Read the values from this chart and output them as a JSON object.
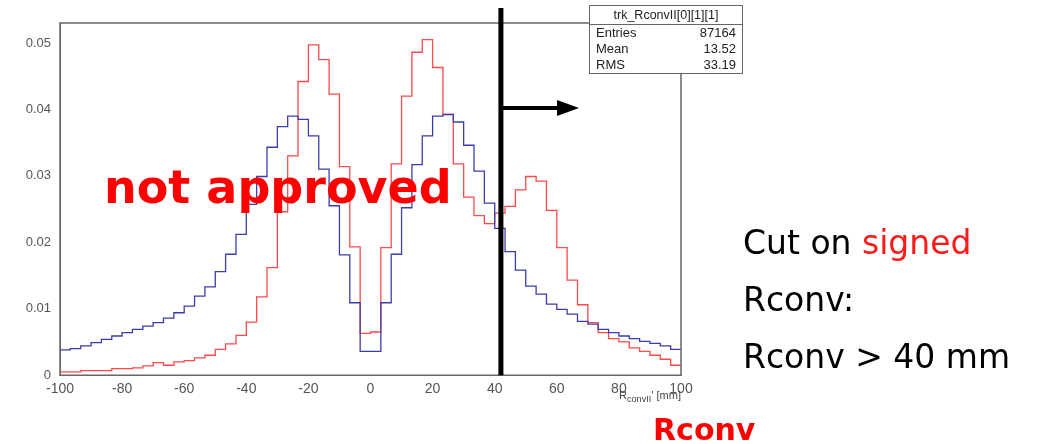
{
  "chart_data": {
    "type": "histogram",
    "xlabel": "R$_{convII}$' [mm]",
    "bins": [
      -100,
      -96.67,
      -93.33,
      -90,
      -86.67,
      -83.33,
      -80,
      -76.67,
      -73.33,
      -70,
      -66.67,
      -63.33,
      -60,
      -56.67,
      -53.33,
      -50,
      -46.67,
      -43.33,
      -40,
      -36.67,
      -33.33,
      -30,
      -26.67,
      -23.33,
      -20,
      -16.67,
      -13.33,
      -10,
      -6.67,
      -3.33,
      0,
      3.33,
      6.67,
      10,
      13.33,
      16.67,
      20,
      23.33,
      26.67,
      30,
      33.33,
      36.67,
      40,
      43.33,
      46.67,
      50,
      53.33,
      56.67,
      60,
      63.33,
      66.67,
      70,
      73.33,
      76.67,
      80,
      83.33,
      86.67,
      90,
      93.33,
      96.67,
      100
    ],
    "series": [
      {
        "color": "#3c3caa",
        "values": [
          0.0038,
          0.004,
          0.0044,
          0.0049,
          0.0054,
          0.0059,
          0.0064,
          0.0069,
          0.0074,
          0.0079,
          0.0086,
          0.0094,
          0.0104,
          0.0119,
          0.0133,
          0.0156,
          0.0182,
          0.0212,
          0.0257,
          0.0299,
          0.0343,
          0.0374,
          0.039,
          0.0385,
          0.036,
          0.031,
          0.0255,
          0.0181,
          0.0109,
          0.0036,
          0.0036,
          0.0109,
          0.0182,
          0.0252,
          0.0317,
          0.036,
          0.039,
          0.0392,
          0.0381,
          0.0346,
          0.0307,
          0.0259,
          0.0221,
          0.0186,
          0.0158,
          0.0134,
          0.0122,
          0.0107,
          0.0099,
          0.0092,
          0.0081,
          0.0077,
          0.0069,
          0.0064,
          0.0059,
          0.0055,
          0.0051,
          0.0048,
          0.0044,
          0.0039
        ]
      },
      {
        "color": "#ff4a4a",
        "values": [
          0.0005,
          0.0005,
          0.0007,
          0.0007,
          0.0007,
          0.001,
          0.001,
          0.0011,
          0.0014,
          0.0019,
          0.0015,
          0.002,
          0.0022,
          0.0026,
          0.003,
          0.0039,
          0.0047,
          0.006,
          0.008,
          0.0118,
          0.0162,
          0.0246,
          0.033,
          0.0442,
          0.0497,
          0.0475,
          0.0423,
          0.0314,
          0.0193,
          0.0063,
          0.0065,
          0.0192,
          0.0318,
          0.042,
          0.0486,
          0.0505,
          0.0463,
          0.0393,
          0.0318,
          0.0268,
          0.024,
          0.0228,
          0.0244,
          0.0254,
          0.0279,
          0.0299,
          0.0292,
          0.0248,
          0.0192,
          0.0143,
          0.0106,
          0.0079,
          0.0064,
          0.0055,
          0.005,
          0.0041,
          0.0036,
          0.003,
          0.0024,
          0.0015
        ]
      }
    ],
    "xlim": [
      -100,
      100
    ],
    "xticks": [
      -100,
      -80,
      -60,
      -40,
      -20,
      0,
      20,
      40,
      60,
      80,
      100
    ],
    "ylim": [
      0,
      0.053
    ],
    "yticks": [
      0,
      0.01,
      0.02,
      0.03,
      0.04,
      0.05
    ],
    "grid": false,
    "legend": false,
    "ref_lines": [
      {
        "axis": "x",
        "value": 42,
        "color": "#000000"
      }
    ],
    "annotations": [
      "trk_RconvII[0][1][1]",
      "Entries 87164",
      "Mean 13.52",
      "RMS 33.19",
      "not approved",
      "Cut on signed",
      "Rconv:",
      "Rconv > 40 mm",
      "Rconv"
    ]
  }
}
